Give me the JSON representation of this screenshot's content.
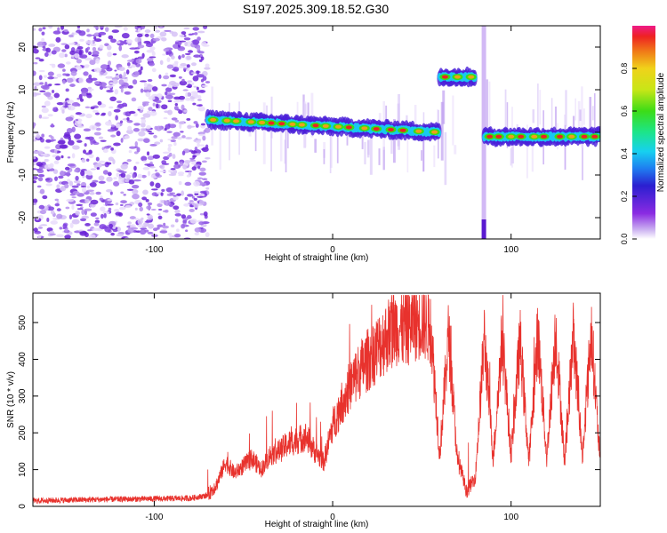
{
  "page": {
    "title": "S197.2025.309.18.52.G30"
  },
  "chart_data": [
    {
      "type": "heatmap",
      "title": "S197.2025.309.18.52.G30",
      "xlabel": "Height of straight line (km)",
      "ylabel": "Frequency (Hz)",
      "xlim": [
        -168,
        150
      ],
      "ylim": [
        -25,
        25
      ],
      "xticks": [
        "-100",
        "0",
        "100"
      ],
      "yticks": [
        "20",
        "10",
        "0",
        "-10",
        "-20"
      ],
      "colorbar": {
        "label": "Normalized spectral amplitude",
        "range": [
          0,
          1
        ],
        "ticks": [
          "0.0",
          "0.2",
          "0.4",
          "0.6",
          "0.8"
        ]
      },
      "segments": [
        {
          "x_start": -168,
          "x_end": -70,
          "description": "diffuse noise",
          "frequency_range": [
            -25,
            25
          ]
        },
        {
          "x_start": -70,
          "x_end": 60,
          "description": "main track",
          "frequency_start": 3,
          "frequency_end": 0
        },
        {
          "x_start": 60,
          "x_end": 80,
          "description": "offset track",
          "frequency": 13
        },
        {
          "x_start": 85,
          "x_end": 150,
          "description": "main track",
          "frequency": -1
        }
      ]
    },
    {
      "type": "line",
      "xlabel": "Height of straight line (km)",
      "ylabel": "SNR (10 * v/v)",
      "xlim": [
        -168,
        150
      ],
      "ylim": [
        0,
        580
      ],
      "xticks": [
        "-100",
        "0",
        "100"
      ],
      "yticks": [
        "0",
        "100",
        "200",
        "300",
        "400",
        "500"
      ],
      "series": [
        {
          "name": "SNR",
          "color": "#e8322d",
          "x": [
            -168,
            -140,
            -110,
            -80,
            -70,
            -65,
            -60,
            -55,
            -50,
            -45,
            -40,
            -35,
            -30,
            -25,
            -20,
            -15,
            -10,
            -5,
            0,
            5,
            10,
            15,
            20,
            25,
            30,
            35,
            40,
            45,
            50,
            55,
            60,
            65,
            70,
            72,
            75,
            80,
            85,
            90,
            95,
            100,
            105,
            110,
            115,
            120,
            125,
            130,
            135,
            140,
            145,
            150
          ],
          "y": [
            15,
            18,
            20,
            22,
            30,
            60,
            120,
            90,
            110,
            130,
            100,
            140,
            150,
            170,
            180,
            190,
            150,
            120,
            220,
            280,
            330,
            370,
            400,
            430,
            460,
            490,
            480,
            500,
            510,
            490,
            140,
            470,
            120,
            100,
            40,
            80,
            460,
            130,
            460,
            140,
            450,
            120,
            470,
            130,
            480,
            120,
            470,
            130,
            480,
            110
          ]
        }
      ]
    }
  ]
}
